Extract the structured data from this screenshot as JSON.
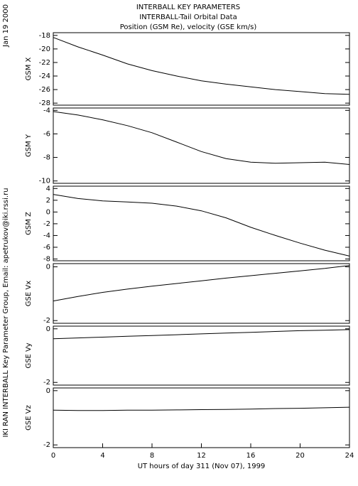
{
  "header": {
    "date": "Jan 19 2000",
    "credit": "IKI RAN INTERBALL Key Parameter Group, Email: apetrukov@iki.rssi.ru",
    "title": [
      "INTERBALL KEY PARAMETERS",
      "INTERBALL-Tail Orbital Data",
      "Position (GSM Re), velocity (GSE km/s)"
    ]
  },
  "chart_data": [
    {
      "type": "line",
      "ylabel": "GSM X",
      "x": [
        0,
        2,
        4,
        6,
        8,
        10,
        12,
        14,
        16,
        18,
        20,
        22,
        24
      ],
      "values": [
        -18.3,
        -19.7,
        -20.9,
        -22.2,
        -23.2,
        -24.0,
        -24.7,
        -25.2,
        -25.6,
        -26.0,
        -26.3,
        -26.6,
        -26.7
      ],
      "xlim": [
        0,
        24
      ],
      "ylim": [
        -28.3,
        -17.6
      ],
      "yticks": [
        -28,
        -26,
        -24,
        -22,
        -20,
        -18
      ]
    },
    {
      "type": "line",
      "ylabel": "GSM Y",
      "x": [
        0,
        2,
        4,
        6,
        8,
        10,
        12,
        14,
        16,
        18,
        20,
        22,
        24
      ],
      "values": [
        -4.1,
        -4.4,
        -4.8,
        -5.3,
        -5.9,
        -6.7,
        -7.5,
        -8.1,
        -8.4,
        -8.5,
        -8.45,
        -8.4,
        -8.6
      ],
      "xlim": [
        0,
        24
      ],
      "ylim": [
        -10.2,
        -3.8
      ],
      "yticks": [
        -10,
        -8,
        -6,
        -4
      ]
    },
    {
      "type": "line",
      "ylabel": "GSM Z",
      "x": [
        0,
        2,
        4,
        6,
        8,
        10,
        12,
        14,
        16,
        18,
        20,
        22,
        24
      ],
      "values": [
        3.0,
        2.3,
        1.9,
        1.7,
        1.5,
        1.0,
        0.2,
        -1.0,
        -2.6,
        -4.0,
        -5.3,
        -6.5,
        -7.5
      ],
      "xlim": [
        0,
        24
      ],
      "ylim": [
        -8.3,
        4.4
      ],
      "yticks": [
        -8,
        -6,
        -4,
        -2,
        0,
        2,
        4
      ]
    },
    {
      "type": "line",
      "ylabel": "GSE Vx",
      "x": [
        0,
        2,
        4,
        6,
        8,
        10,
        12,
        14,
        16,
        18,
        20,
        22,
        24
      ],
      "values": [
        -1.27,
        -1.1,
        -0.95,
        -0.83,
        -0.72,
        -0.62,
        -0.52,
        -0.42,
        -0.33,
        -0.24,
        -0.15,
        -0.06,
        0.05
      ],
      "xlim": [
        0,
        24
      ],
      "ylim": [
        -2.1,
        0.12
      ],
      "yticks": [
        -2,
        0
      ]
    },
    {
      "type": "line",
      "ylabel": "GSE Vy",
      "x": [
        0,
        2,
        4,
        6,
        8,
        10,
        12,
        14,
        16,
        18,
        20,
        22,
        24
      ],
      "values": [
        -0.37,
        -0.34,
        -0.31,
        -0.28,
        -0.25,
        -0.22,
        -0.19,
        -0.16,
        -0.13,
        -0.1,
        -0.07,
        -0.05,
        -0.03
      ],
      "xlim": [
        0,
        24
      ],
      "ylim": [
        -2.1,
        0.1
      ],
      "yticks": [
        -2,
        0
      ]
    },
    {
      "type": "line",
      "ylabel": "GSE Vz",
      "x": [
        0,
        2,
        4,
        6,
        8,
        10,
        12,
        14,
        16,
        18,
        20,
        22,
        24
      ],
      "values": [
        -0.72,
        -0.73,
        -0.73,
        -0.72,
        -0.72,
        -0.71,
        -0.7,
        -0.69,
        -0.68,
        -0.66,
        -0.65,
        -0.63,
        -0.61
      ],
      "xlim": [
        0,
        24
      ],
      "ylim": [
        -2.1,
        0.1
      ],
      "yticks": [
        -2,
        0
      ],
      "xticks": [
        0,
        4,
        8,
        12,
        16,
        20,
        24
      ],
      "xlabel": "UT hours of day 311 (Nov 07), 1999"
    }
  ]
}
